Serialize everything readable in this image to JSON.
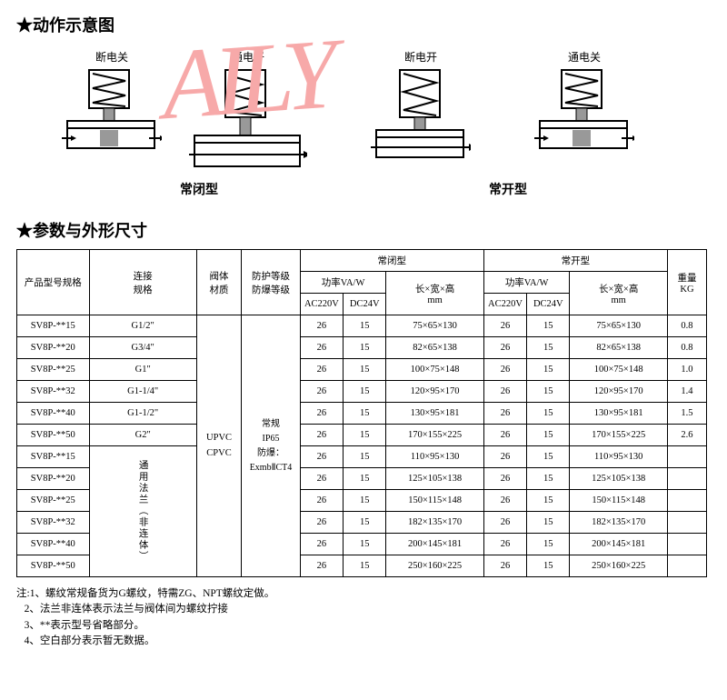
{
  "section1_title": "★动作示意图",
  "section2_title": "★参数与外形尺寸",
  "watermark_text": "AILY",
  "valve_labels": {
    "v1": "断电关",
    "v2": "通电开",
    "v3": "断电开",
    "v4": "通电关"
  },
  "type_labels": {
    "nc": "常闭型",
    "no": "常开型"
  },
  "header": {
    "model": "产品型号规格",
    "conn": "连接\n规格",
    "mat": "阀体\n材质",
    "prot": "防护等级\n防爆等级",
    "nc": "常闭型",
    "no": "常开型",
    "power": "功率VA/W",
    "ac": "AC220V",
    "dc": "DC24V",
    "dim": "长×宽×高\nmm",
    "wt": "重量\nKG"
  },
  "mat_text": "UPVC CPVC",
  "prot_text": "常规 IP65 防爆： ExmbⅡCT4",
  "conn_group2": "通用法兰（非连体）",
  "rows": [
    {
      "model": "SV8P-**15",
      "conn": "G1/2\"",
      "ac1": "26",
      "dc1": "15",
      "dim1": "75×65×130",
      "ac2": "26",
      "dc2": "15",
      "dim2": "75×65×130",
      "wt": "0.8"
    },
    {
      "model": "SV8P-**20",
      "conn": "G3/4\"",
      "ac1": "26",
      "dc1": "15",
      "dim1": "82×65×138",
      "ac2": "26",
      "dc2": "15",
      "dim2": "82×65×138",
      "wt": "0.8"
    },
    {
      "model": "SV8P-**25",
      "conn": "G1\"",
      "ac1": "26",
      "dc1": "15",
      "dim1": "100×75×148",
      "ac2": "26",
      "dc2": "15",
      "dim2": "100×75×148",
      "wt": "1.0"
    },
    {
      "model": "SV8P-**32",
      "conn": "G1-1/4\"",
      "ac1": "26",
      "dc1": "15",
      "dim1": "120×95×170",
      "ac2": "26",
      "dc2": "15",
      "dim2": "120×95×170",
      "wt": "1.4"
    },
    {
      "model": "SV8P-**40",
      "conn": "G1-1/2\"",
      "ac1": "26",
      "dc1": "15",
      "dim1": "130×95×181",
      "ac2": "26",
      "dc2": "15",
      "dim2": "130×95×181",
      "wt": "1.5"
    },
    {
      "model": "SV8P-**50",
      "conn": "G2\"",
      "ac1": "26",
      "dc1": "15",
      "dim1": "170×155×225",
      "ac2": "26",
      "dc2": "15",
      "dim2": "170×155×225",
      "wt": "2.6"
    },
    {
      "model": "SV8P-**15",
      "conn": "",
      "ac1": "26",
      "dc1": "15",
      "dim1": "110×95×130",
      "ac2": "26",
      "dc2": "15",
      "dim2": "110×95×130",
      "wt": ""
    },
    {
      "model": "SV8P-**20",
      "conn": "",
      "ac1": "26",
      "dc1": "15",
      "dim1": "125×105×138",
      "ac2": "26",
      "dc2": "15",
      "dim2": "125×105×138",
      "wt": ""
    },
    {
      "model": "SV8P-**25",
      "conn": "",
      "ac1": "26",
      "dc1": "15",
      "dim1": "150×115×148",
      "ac2": "26",
      "dc2": "15",
      "dim2": "150×115×148",
      "wt": ""
    },
    {
      "model": "SV8P-**32",
      "conn": "",
      "ac1": "26",
      "dc1": "15",
      "dim1": "182×135×170",
      "ac2": "26",
      "dc2": "15",
      "dim2": "182×135×170",
      "wt": ""
    },
    {
      "model": "SV8P-**40",
      "conn": "",
      "ac1": "26",
      "dc1": "15",
      "dim1": "200×145×181",
      "ac2": "26",
      "dc2": "15",
      "dim2": "200×145×181",
      "wt": ""
    },
    {
      "model": "SV8P-**50",
      "conn": "",
      "ac1": "26",
      "dc1": "15",
      "dim1": "250×160×225",
      "ac2": "26",
      "dc2": "15",
      "dim2": "250×160×225",
      "wt": ""
    }
  ],
  "notes_prefix": "注:",
  "notes": [
    "1、螺纹常规备货为G螺纹，特需ZG、NPT螺纹定做。",
    "2、法兰非连体表示法兰与阀体间为螺纹拧接",
    "3、**表示型号省略部分。",
    "4、空白部分表示暂无数据。"
  ],
  "colors": {
    "text": "#000000",
    "watermark": "#f7a9a9",
    "bg": "#ffffff",
    "border": "#000000"
  }
}
